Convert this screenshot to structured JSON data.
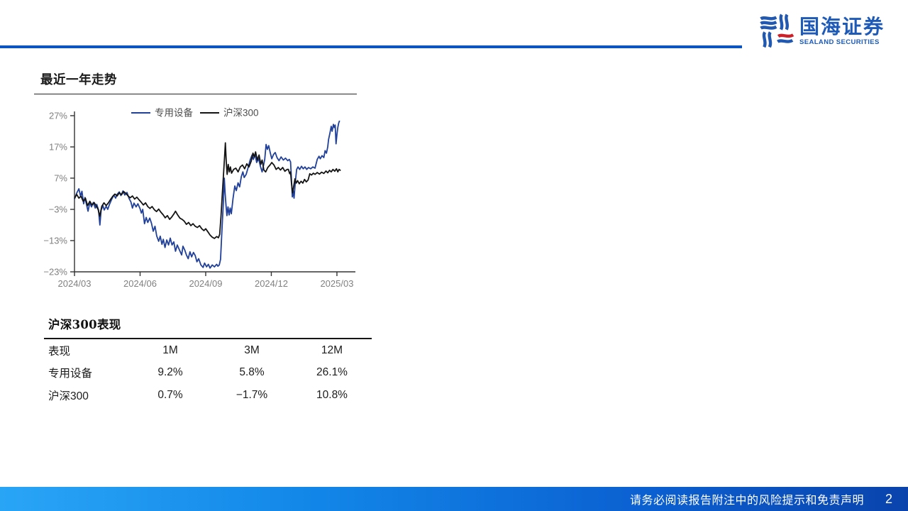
{
  "brand": {
    "name_cn": "国海证券",
    "name_en": "SEALAND SECURITIES",
    "blue": "#1E5AB8",
    "icon_blue": "#2158B0",
    "icon_red": "#CC2128"
  },
  "header": {
    "rule_color": "#0B54C2"
  },
  "sections": {
    "trend_title": "最近一年走势",
    "perf_title": "沪深300表现"
  },
  "chart_data": {
    "type": "line",
    "title": "最近一年走势",
    "xlabel": "",
    "ylabel": "",
    "x_unit": "months since 2024/03",
    "x_ticks": [
      "2024/03",
      "2024/06",
      "2024/09",
      "2024/12",
      "2025/03"
    ],
    "x_tick_months": [
      0,
      3,
      6,
      9,
      12
    ],
    "y_ticks": [
      27,
      17,
      7,
      -3,
      -13,
      -23
    ],
    "y_tick_labels": [
      "27%",
      "17%",
      "7%",
      "−3%",
      "−13%",
      "−23%"
    ],
    "ylim": [
      -24,
      28
    ],
    "grid": false,
    "legend_position": "top-center-inside",
    "axis_color": "#333333",
    "tick_label_color": "#808080",
    "legend_text_color": "#4d4d4d",
    "series": [
      {
        "name": "专用设备",
        "color": "#20409A",
        "points": [
          [
            0,
            0.3
          ],
          [
            0.1,
            2.2
          ],
          [
            0.2,
            3.6
          ],
          [
            0.28,
            1.2
          ],
          [
            0.34,
            2.8
          ],
          [
            0.42,
            -1.2
          ],
          [
            0.48,
            0.8
          ],
          [
            0.55,
            -1.5
          ],
          [
            0.62,
            -3.6
          ],
          [
            0.7,
            -0.8
          ],
          [
            0.78,
            -2.2
          ],
          [
            0.86,
            -0.8
          ],
          [
            0.95,
            -2.6
          ],
          [
            1.02,
            -1.4
          ],
          [
            1.1,
            -3.2
          ],
          [
            1.16,
            -8
          ],
          [
            1.22,
            -3.2
          ],
          [
            1.3,
            -1.8
          ],
          [
            1.36,
            -3.2
          ],
          [
            1.45,
            -2
          ],
          [
            1.52,
            -3
          ],
          [
            1.6,
            -1.4
          ],
          [
            1.7,
            0.2
          ],
          [
            1.8,
            1.6
          ],
          [
            1.88,
            0.6
          ],
          [
            1.95,
            1.8
          ],
          [
            2.05,
            2.6
          ],
          [
            2.12,
            1.4
          ],
          [
            2.22,
            2.9
          ],
          [
            2.3,
            1.6
          ],
          [
            2.4,
            2.4
          ],
          [
            2.5,
            0.4
          ],
          [
            2.58,
            -0.6
          ],
          [
            2.65,
            -2.6
          ],
          [
            2.72,
            -1
          ],
          [
            2.82,
            -2.2
          ],
          [
            2.9,
            -1.2
          ],
          [
            3,
            -2.8
          ],
          [
            3.06,
            -4.2
          ],
          [
            3.12,
            -3
          ],
          [
            3.2,
            -7.6
          ],
          [
            3.28,
            -5.6
          ],
          [
            3.35,
            -7.2
          ],
          [
            3.44,
            -5.8
          ],
          [
            3.52,
            -7.4
          ],
          [
            3.6,
            -10
          ],
          [
            3.68,
            -8.4
          ],
          [
            3.76,
            -11.5
          ],
          [
            3.85,
            -13.2
          ],
          [
            3.92,
            -11.6
          ],
          [
            4,
            -14.2
          ],
          [
            4.06,
            -12.6
          ],
          [
            4.14,
            -15.2
          ],
          [
            4.22,
            -12.8
          ],
          [
            4.3,
            -14.4
          ],
          [
            4.38,
            -12.2
          ],
          [
            4.46,
            -14.4
          ],
          [
            4.54,
            -13.4
          ],
          [
            4.62,
            -16.4
          ],
          [
            4.7,
            -14.4
          ],
          [
            4.8,
            -16
          ],
          [
            4.9,
            -17.6
          ],
          [
            4.96,
            -14.8
          ],
          [
            5.04,
            -16
          ],
          [
            5.12,
            -17.6
          ],
          [
            5.2,
            -18.8
          ],
          [
            5.28,
            -16.6
          ],
          [
            5.36,
            -18.2
          ],
          [
            5.44,
            -16.8
          ],
          [
            5.52,
            -17.8
          ],
          [
            5.6,
            -19.8
          ],
          [
            5.68,
            -18.8
          ],
          [
            5.78,
            -20.8
          ],
          [
            5.88,
            -21.6
          ],
          [
            5.95,
            -20.2
          ],
          [
            6.04,
            -21.4
          ],
          [
            6.12,
            -20.6
          ],
          [
            6.2,
            -21.8
          ],
          [
            6.3,
            -20.8
          ],
          [
            6.4,
            -21.4
          ],
          [
            6.5,
            -20.6
          ],
          [
            6.56,
            -21.2
          ],
          [
            6.62,
            -20.8
          ],
          [
            6.68,
            -19
          ],
          [
            6.74,
            -10
          ],
          [
            6.8,
            -2
          ],
          [
            6.85,
            7
          ],
          [
            6.89,
            2
          ],
          [
            6.93,
            -2
          ],
          [
            6.97,
            -5
          ],
          [
            7.02,
            -2.2
          ],
          [
            7.07,
            -4.8
          ],
          [
            7.12,
            -2.6
          ],
          [
            7.17,
            -4.4
          ],
          [
            7.25,
            0.5
          ],
          [
            7.33,
            4.5
          ],
          [
            7.4,
            3
          ],
          [
            7.48,
            5.5
          ],
          [
            7.55,
            4.2
          ],
          [
            7.63,
            7.5
          ],
          [
            7.7,
            9
          ],
          [
            7.76,
            7.2
          ],
          [
            7.85,
            8.2
          ],
          [
            7.94,
            10.4
          ],
          [
            8.03,
            12.8
          ],
          [
            8.12,
            14.4
          ],
          [
            8.18,
            13
          ],
          [
            8.26,
            14.6
          ],
          [
            8.33,
            12
          ],
          [
            8.42,
            13.2
          ],
          [
            8.5,
            10.8
          ],
          [
            8.58,
            9
          ],
          [
            8.64,
            11
          ],
          [
            8.7,
            13
          ],
          [
            8.76,
            17.8
          ],
          [
            8.82,
            16.2
          ],
          [
            8.88,
            17.4
          ],
          [
            8.95,
            15.2
          ],
          [
            9.02,
            13.2
          ],
          [
            9.1,
            14.6
          ],
          [
            9.18,
            15.2
          ],
          [
            9.26,
            13.6
          ],
          [
            9.35,
            12.6
          ],
          [
            9.45,
            13.8
          ],
          [
            9.55,
            12.8
          ],
          [
            9.65,
            13.4
          ],
          [
            9.75,
            12.6
          ],
          [
            9.82,
            13
          ],
          [
            9.88,
            12.2
          ],
          [
            9.93,
            5.5
          ],
          [
            9.96,
            1
          ],
          [
            10,
            3
          ],
          [
            10.04,
            0.6
          ],
          [
            10.1,
            6
          ],
          [
            10.16,
            9.8
          ],
          [
            10.22,
            10.6
          ],
          [
            10.3,
            9.8
          ],
          [
            10.38,
            10.8
          ],
          [
            10.46,
            10
          ],
          [
            10.54,
            10.6
          ],
          [
            10.62,
            9.8
          ],
          [
            10.7,
            10.4
          ],
          [
            10.8,
            10
          ],
          [
            10.9,
            10.6
          ],
          [
            11,
            10.2
          ],
          [
            11.1,
            13
          ],
          [
            11.18,
            14
          ],
          [
            11.24,
            13.2
          ],
          [
            11.32,
            14.2
          ],
          [
            11.4,
            13.6
          ],
          [
            11.46,
            15.8
          ],
          [
            11.52,
            15
          ],
          [
            11.58,
            17
          ],
          [
            11.62,
            19.4
          ],
          [
            11.68,
            21.4
          ],
          [
            11.74,
            23.6
          ],
          [
            11.78,
            22
          ],
          [
            11.84,
            24.2
          ],
          [
            11.88,
            23.2
          ],
          [
            11.92,
            24
          ],
          [
            11.96,
            18
          ],
          [
            12,
            21
          ],
          [
            12.04,
            23.2
          ],
          [
            12.08,
            24.6
          ],
          [
            12.12,
            25.4
          ]
        ]
      },
      {
        "name": "沪深300",
        "color": "#141414",
        "points": [
          [
            0,
            0.5
          ],
          [
            0.1,
            1.8
          ],
          [
            0.2,
            0.6
          ],
          [
            0.3,
            1.2
          ],
          [
            0.4,
            -0.4
          ],
          [
            0.5,
            0.6
          ],
          [
            0.6,
            -1.8
          ],
          [
            0.7,
            -0.4
          ],
          [
            0.8,
            -1.6
          ],
          [
            0.9,
            -0.8
          ],
          [
            1,
            -2
          ],
          [
            1.08,
            -3
          ],
          [
            1.15,
            -5.2
          ],
          [
            1.25,
            -2
          ],
          [
            1.35,
            -0.9
          ],
          [
            1.45,
            -1.8
          ],
          [
            1.55,
            -0.9
          ],
          [
            1.65,
            0.2
          ],
          [
            1.75,
            1.2
          ],
          [
            1.85,
            1.9
          ],
          [
            1.95,
            1.3
          ],
          [
            2.05,
            2.3
          ],
          [
            2.15,
            1.7
          ],
          [
            2.25,
            2.7
          ],
          [
            2.35,
            2.1
          ],
          [
            2.45,
            1.3
          ],
          [
            2.55,
            0.7
          ],
          [
            2.65,
            1.3
          ],
          [
            2.75,
            0.3
          ],
          [
            2.85,
            0.9
          ],
          [
            2.95,
            0.1
          ],
          [
            3.05,
            -0.7
          ],
          [
            3.15,
            -1.6
          ],
          [
            3.25,
            -0.9
          ],
          [
            3.35,
            -2.1
          ],
          [
            3.45,
            -2.7
          ],
          [
            3.55,
            -2.1
          ],
          [
            3.65,
            -3.1
          ],
          [
            3.75,
            -3.7
          ],
          [
            3.85,
            -2.9
          ],
          [
            3.95,
            -3.9
          ],
          [
            4.05,
            -4.7
          ],
          [
            4.15,
            -5.7
          ],
          [
            4.25,
            -5
          ],
          [
            4.35,
            -6.2
          ],
          [
            4.45,
            -5.4
          ],
          [
            4.55,
            -4.4
          ],
          [
            4.62,
            -3.6
          ],
          [
            4.72,
            -4.8
          ],
          [
            4.82,
            -5.8
          ],
          [
            4.92,
            -6.2
          ],
          [
            5.02,
            -6.8
          ],
          [
            5.12,
            -7.8
          ],
          [
            5.22,
            -7.2
          ],
          [
            5.32,
            -8.2
          ],
          [
            5.42,
            -7.6
          ],
          [
            5.52,
            -8.4
          ],
          [
            5.62,
            -8.8
          ],
          [
            5.72,
            -8.2
          ],
          [
            5.82,
            -9.2
          ],
          [
            5.92,
            -9.8
          ],
          [
            6,
            -9.2
          ],
          [
            6.1,
            -10.2
          ],
          [
            6.2,
            -11.2
          ],
          [
            6.3,
            -11.9
          ],
          [
            6.4,
            -12.3
          ],
          [
            6.5,
            -11.7
          ],
          [
            6.58,
            -12.1
          ],
          [
            6.64,
            -11
          ],
          [
            6.7,
            -5
          ],
          [
            6.76,
            2
          ],
          [
            6.82,
            9
          ],
          [
            6.86,
            13.5
          ],
          [
            6.9,
            18.3
          ],
          [
            6.94,
            12
          ],
          [
            6.98,
            8.2
          ],
          [
            7.03,
            11.4
          ],
          [
            7.08,
            9
          ],
          [
            7.13,
            10.6
          ],
          [
            7.18,
            8.6
          ],
          [
            7.28,
            9.8
          ],
          [
            7.38,
            10.2
          ],
          [
            7.48,
            9
          ],
          [
            7.58,
            10.6
          ],
          [
            7.68,
            11.2
          ],
          [
            7.78,
            10
          ],
          [
            7.88,
            11.6
          ],
          [
            7.98,
            10.6
          ],
          [
            8.08,
            12.4
          ],
          [
            8.16,
            15
          ],
          [
            8.22,
            13.8
          ],
          [
            8.28,
            15.4
          ],
          [
            8.36,
            12.8
          ],
          [
            8.44,
            14.4
          ],
          [
            8.52,
            11.4
          ],
          [
            8.58,
            12.8
          ],
          [
            8.66,
            9.6
          ],
          [
            8.74,
            9
          ],
          [
            8.84,
            10.4
          ],
          [
            8.94,
            11.2
          ],
          [
            9.02,
            12
          ],
          [
            9.12,
            11.2
          ],
          [
            9.22,
            9.8
          ],
          [
            9.32,
            10.4
          ],
          [
            9.42,
            9.6
          ],
          [
            9.52,
            10.4
          ],
          [
            9.62,
            9.2
          ],
          [
            9.72,
            9.8
          ],
          [
            9.78,
            9.8
          ],
          [
            9.84,
            8.4
          ],
          [
            9.88,
            9
          ],
          [
            9.92,
            5.6
          ],
          [
            9.97,
            2.3
          ],
          [
            10.02,
            4.2
          ],
          [
            10.08,
            6.8
          ],
          [
            10.14,
            5.4
          ],
          [
            10.2,
            6.2
          ],
          [
            10.28,
            5.2
          ],
          [
            10.36,
            6
          ],
          [
            10.44,
            5.4
          ],
          [
            10.52,
            6.6
          ],
          [
            10.6,
            5.8
          ],
          [
            10.68,
            6.4
          ],
          [
            10.76,
            8.4
          ],
          [
            10.84,
            8
          ],
          [
            10.92,
            8.6
          ],
          [
            11,
            8.2
          ],
          [
            11.1,
            8.8
          ],
          [
            11.2,
            8.3
          ],
          [
            11.3,
            8.9
          ],
          [
            11.4,
            8.5
          ],
          [
            11.5,
            9.3
          ],
          [
            11.58,
            8.7
          ],
          [
            11.66,
            9.5
          ],
          [
            11.74,
            9
          ],
          [
            11.82,
            9.8
          ],
          [
            11.9,
            9.2
          ],
          [
            11.98,
            10
          ],
          [
            12.04,
            9
          ],
          [
            12.1,
            9.8
          ],
          [
            12.17,
            9.4
          ]
        ]
      }
    ]
  },
  "perf_table": {
    "title": "沪深300表现",
    "header": [
      "表现",
      "1M",
      "3M",
      "12M"
    ],
    "rows": [
      {
        "cells": [
          "专用设备",
          "9.2%",
          "5.8%",
          "26.1%"
        ]
      },
      {
        "cells": [
          "沪深300",
          "0.7%",
          "−1.7%",
          "10.8%"
        ]
      }
    ]
  },
  "footer": {
    "disclaimer": "请务必阅读报告附注中的风险提示和免责声明",
    "page_number": "2",
    "gradient_left": "#29A5F6",
    "gradient_right": "#0A43AC"
  }
}
